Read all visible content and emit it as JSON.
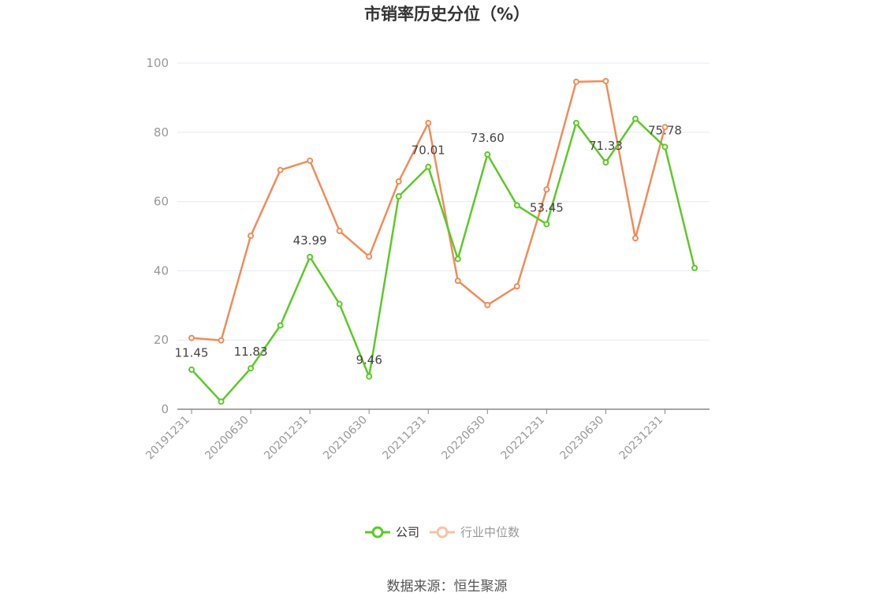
{
  "chart_data": {
    "type": "line",
    "title": "市销率历史分位（%）",
    "ylim": [
      0,
      100
    ],
    "y_ticks": [
      0,
      20,
      40,
      60,
      80,
      100
    ],
    "grid": true,
    "legend_position": "bottom",
    "x": [
      "20191231",
      "20200331",
      "20200630",
      "20200930",
      "20201231",
      "20210331",
      "20210630",
      "20210930",
      "20211231",
      "20220331",
      "20220630",
      "20220930",
      "20221231",
      "20230331",
      "20230630",
      "20230930",
      "20231231",
      "20240331"
    ],
    "x_tick_labels": [
      "20191231",
      "20200630",
      "20201231",
      "20210630",
      "20211231",
      "20220630",
      "20221231",
      "20230630",
      "20231231"
    ],
    "series": [
      {
        "name": "公司",
        "color": "#5cc928",
        "values": [
          11.45,
          2.2,
          11.83,
          24.2,
          43.99,
          30.4,
          9.46,
          61.5,
          70.01,
          43.4,
          73.6,
          58.9,
          53.45,
          82.7,
          71.33,
          83.9,
          75.78,
          40.8
        ],
        "labels": {
          "0": "11.45",
          "2": "11.83",
          "4": "43.99",
          "6": "9.46",
          "8": "70.01",
          "10": "73.60",
          "12": "53.45",
          "14": "71.33",
          "16": "75.78"
        }
      },
      {
        "name": "行业中位数",
        "color": "#f08c5a",
        "values": [
          20.6,
          19.9,
          50.1,
          69.1,
          71.8,
          51.5,
          44.1,
          65.8,
          82.7,
          37.1,
          30.1,
          35.5,
          63.5,
          94.6,
          94.8,
          49.4,
          81.5,
          null
        ]
      }
    ]
  },
  "legend": {
    "company_label": "公司",
    "industry_label": "行业中位数"
  },
  "source_note": "数据来源：恒生聚源"
}
